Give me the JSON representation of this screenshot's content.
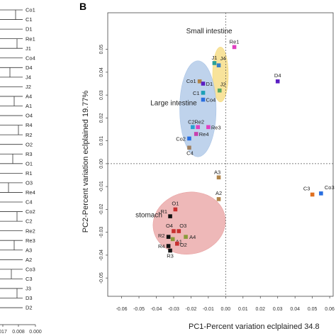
{
  "panel_label": "B",
  "dendrogram": {
    "leaves": [
      "Co1",
      "C1",
      "D1",
      "Re1",
      "J1",
      "Co4",
      "D4",
      "J4",
      "J2",
      "A4",
      "A1",
      "O4",
      "R4",
      "R2",
      "O2",
      "R3",
      "O1",
      "R1",
      "O3",
      "Re4",
      "C4",
      "Co2",
      "C2",
      "Re2",
      "Re3",
      "A3",
      "A2",
      "Co3",
      "C3",
      "J3",
      "D3",
      "D2"
    ],
    "scale_ticks": [
      "017",
      "0.008",
      "0.000"
    ]
  },
  "chart_data": {
    "type": "scatter",
    "xlabel": "PC1-Percent variation eclplained 34.8",
    "ylabel": "PC2-Percent variation eclplained 19.77%",
    "xlim": [
      -0.068,
      0.062
    ],
    "ylim": [
      -0.058,
      0.066
    ],
    "xticks": [
      "-0.06",
      "-0.05",
      "-0.04",
      "-0.03",
      "-0.02",
      "-0.01",
      "0.00",
      "0.01",
      "0.02",
      "0.03",
      "0.04",
      "0.05",
      "0.06"
    ],
    "xtick_values": [
      -0.06,
      -0.05,
      -0.04,
      -0.03,
      -0.02,
      -0.01,
      0,
      0.01,
      0.02,
      0.03,
      0.04,
      0.05,
      0.06
    ],
    "yticks": [
      "0.05",
      "0.04",
      "0.03",
      "0.02",
      "0.01",
      "0.00",
      "-0.01",
      "-0.02",
      "-0.03",
      "-0.04",
      "-0.05"
    ],
    "ytick_values": [
      0.05,
      0.04,
      0.03,
      0.02,
      0.01,
      0,
      -0.01,
      -0.02,
      -0.03,
      -0.04,
      -0.05
    ],
    "groups": [
      {
        "name": "Small intestine",
        "color": "#f5d97a",
        "center": [
          -0.003,
          0.039
        ],
        "radius": [
          0.0045,
          0.012
        ]
      },
      {
        "name": "Large intestine",
        "color": "#a9c4e6",
        "center": [
          -0.016,
          0.024
        ],
        "radius": [
          0.0105,
          0.021
        ]
      },
      {
        "name": "stomach",
        "color": "#e8a0a0",
        "center": [
          -0.021,
          -0.026
        ],
        "radius": [
          0.021,
          0.0135
        ]
      }
    ],
    "points": [
      {
        "label": "Re1",
        "x": 0.005,
        "y": 0.051,
        "color": "#e040c0"
      },
      {
        "label": "J1",
        "x": -0.0065,
        "y": 0.044,
        "color": "#2aa198"
      },
      {
        "label": "J4",
        "x": -0.004,
        "y": 0.043,
        "color": "#3a7fc8"
      },
      {
        "label": "J2",
        "x": -0.0035,
        "y": 0.032,
        "color": "#5aa865"
      },
      {
        "label": "D4",
        "x": 0.03,
        "y": 0.036,
        "color": "#5b1ec2"
      },
      {
        "label": "Co1",
        "x": -0.015,
        "y": 0.036,
        "color": "#b0844a"
      },
      {
        "label": "D1",
        "x": -0.013,
        "y": 0.035,
        "color": "#5b1ec2"
      },
      {
        "label": "C1",
        "x": -0.013,
        "y": 0.031,
        "color": "#1ea0b8"
      },
      {
        "label": "Co4",
        "x": -0.013,
        "y": 0.028,
        "color": "#2a6fe0"
      },
      {
        "label": "C2",
        "x": -0.019,
        "y": 0.016,
        "color": "#2a9fd0"
      },
      {
        "label": "Re2",
        "x": -0.016,
        "y": 0.016,
        "color": "#e040c0"
      },
      {
        "label": "Re3",
        "x": -0.01,
        "y": 0.016,
        "color": "#e040c0"
      },
      {
        "label": "Re4",
        "x": -0.017,
        "y": 0.013,
        "color": "#c83fae"
      },
      {
        "label": "Co2",
        "x": -0.021,
        "y": 0.011,
        "color": "#2a6fe0"
      },
      {
        "label": "C4",
        "x": -0.021,
        "y": 0.007,
        "color": "#a08060"
      },
      {
        "label": "A3",
        "x": -0.004,
        "y": -0.006,
        "color": "#b0844a"
      },
      {
        "label": "A2",
        "x": -0.004,
        "y": -0.0155,
        "color": "#b0844a"
      },
      {
        "label": "C3",
        "x": 0.05,
        "y": -0.0135,
        "color": "#e07020"
      },
      {
        "label": "Co3",
        "x": 0.055,
        "y": -0.013,
        "color": "#2a6fe0"
      },
      {
        "label": "O1",
        "x": -0.029,
        "y": -0.02,
        "color": "#c83030"
      },
      {
        "label": "R1",
        "x": -0.032,
        "y": -0.023,
        "color": "#111111"
      },
      {
        "label": "O3",
        "x": -0.027,
        "y": -0.0295,
        "color": "#c83030"
      },
      {
        "label": "O4",
        "x": -0.03,
        "y": -0.0295,
        "color": "#c83030"
      },
      {
        "label": "R2",
        "x": -0.033,
        "y": -0.032,
        "color": "#111111"
      },
      {
        "label": "A1",
        "x": -0.0305,
        "y": -0.033,
        "color": "#8a9a3a"
      },
      {
        "label": "A4",
        "x": -0.023,
        "y": -0.032,
        "color": "#8a9a3a"
      },
      {
        "label": "R4",
        "x": -0.033,
        "y": -0.036,
        "color": "#111111"
      },
      {
        "label": "O2",
        "x": -0.028,
        "y": -0.035,
        "color": "#c83030"
      },
      {
        "label": "R3",
        "x": -0.032,
        "y": -0.038,
        "color": "#111111"
      }
    ]
  }
}
